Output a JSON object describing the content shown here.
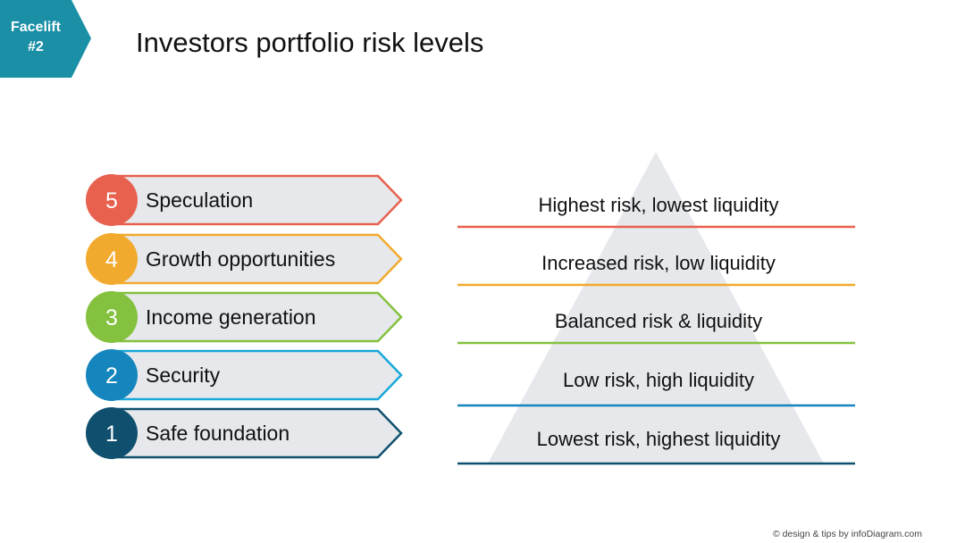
{
  "badge": {
    "line1": "Facelift",
    "line2": "#2"
  },
  "title": "Investors portfolio risk levels",
  "levels": [
    {
      "number": "5",
      "label": "Speculation",
      "description": "Highest risk, lowest liquidity",
      "color": "#E8604E"
    },
    {
      "number": "4",
      "label": "Growth opportunities",
      "description": "Increased risk, low liquidity",
      "color": "#F2AA2E"
    },
    {
      "number": "3",
      "label": "Income generation",
      "description": "Balanced risk & liquidity",
      "color": "#84C13F"
    },
    {
      "number": "2",
      "label": "Security",
      "description": "Low risk, high liquidity",
      "color": "#1485BD"
    },
    {
      "number": "1",
      "label": "Safe foundation",
      "description": "Lowest risk, highest liquidity",
      "color": "#0F506E"
    }
  ],
  "colors": {
    "badge": "#1A8FA6",
    "arrow_fill": "#E6E8EC",
    "pyramid_fill": "#E6E8EC",
    "line_level2": "#18A8DA"
  },
  "footer": "© design & tips by infoDiagram.com"
}
